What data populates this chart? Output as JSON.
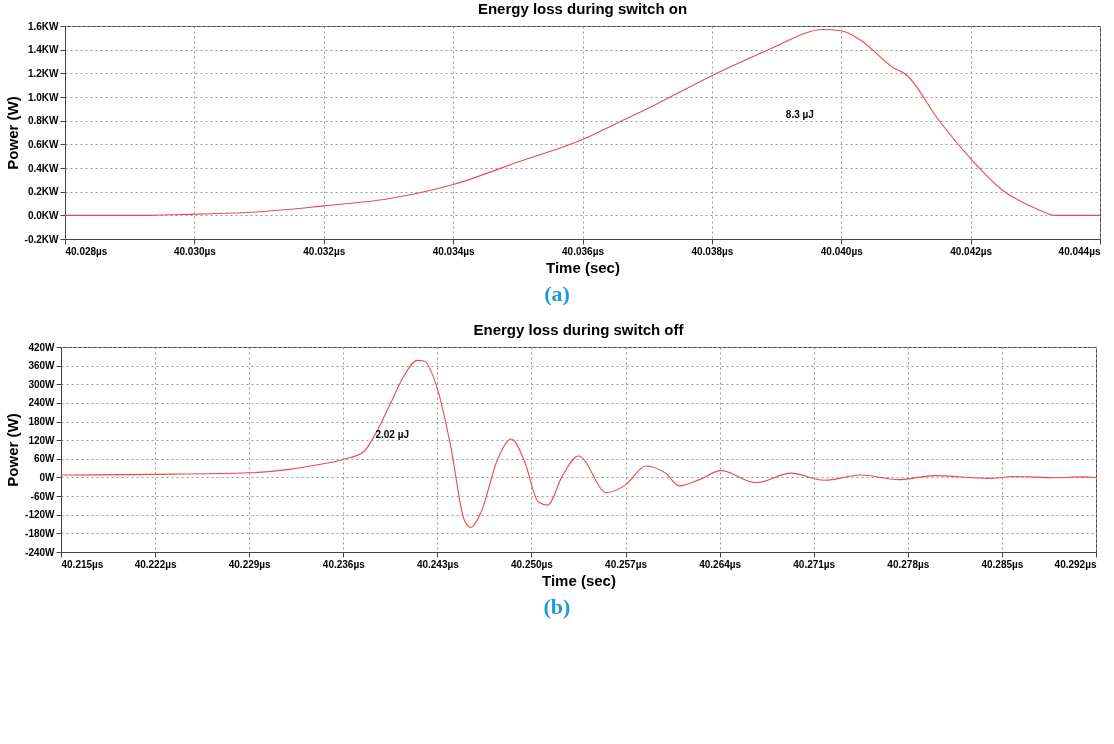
{
  "chart_data": [
    {
      "type": "line",
      "title": "Energy loss during switch on",
      "xlabel": "Time (sec)",
      "ylabel": "Power (W)",
      "series": [
        {
          "color": "#f04848",
          "x": [
            40.028,
            40.0293,
            40.03,
            40.031,
            40.032,
            40.033,
            40.034,
            40.035,
            40.036,
            40.0365,
            40.037,
            40.038,
            40.039,
            40.0395,
            40.0397,
            40.04,
            40.0403,
            40.0408,
            40.041,
            40.0415,
            40.042,
            40.0425,
            40.043,
            40.0433,
            40.044
          ],
          "values": [
            0,
            0,
            0.01,
            0.03,
            0.08,
            0.14,
            0.26,
            0.45,
            0.64,
            0.77,
            0.9,
            1.18,
            1.43,
            1.55,
            1.57,
            1.56,
            1.48,
            1.25,
            1.19,
            0.81,
            0.48,
            0.21,
            0.06,
            0,
            0
          ]
        }
      ],
      "xlim": [
        40.028,
        40.044
      ],
      "xticks": [
        {
          "value": 40.028,
          "label": "40.028µs"
        },
        {
          "value": 40.03,
          "label": "40.030µs"
        },
        {
          "value": 40.032,
          "label": "40.032µs"
        },
        {
          "value": 40.034,
          "label": "40.034µs"
        },
        {
          "value": 40.036,
          "label": "40.036µs"
        },
        {
          "value": 40.038,
          "label": "40.038µs"
        },
        {
          "value": 40.04,
          "label": "40.040µs"
        },
        {
          "value": 40.042,
          "label": "40.042µs"
        },
        {
          "value": 40.044,
          "label": "40.044µs"
        }
      ],
      "ylim": [
        -0.2,
        1.6
      ],
      "yticks": [
        {
          "value": -0.2,
          "label": "-0.2KW"
        },
        {
          "value": 0,
          "label": "0.0KW"
        },
        {
          "value": 0.2,
          "label": "0.2KW"
        },
        {
          "value": 0.4,
          "label": "0.4KW"
        },
        {
          "value": 0.6,
          "label": "0.6KW"
        },
        {
          "value": 0.8,
          "label": "0.8KW"
        },
        {
          "value": 1.0,
          "label": "1.0KW"
        },
        {
          "value": 1.2,
          "label": "1.2KW"
        },
        {
          "value": 1.4,
          "label": "1.4KW"
        },
        {
          "value": 1.6,
          "label": "1.6KW"
        }
      ],
      "grid": true,
      "annotations": [
        "8.3 µJ",
        "(a)"
      ]
    },
    {
      "type": "line",
      "title": "Energy loss during switch off",
      "xlabel": "Time (sec)",
      "ylabel": "Power (W)",
      "series": [
        {
          "color": "#f04848",
          "x": [
            40.215,
            40.222,
            40.229,
            40.232,
            40.234,
            40.236,
            40.2375,
            40.2385,
            40.2395,
            40.2405,
            40.2415,
            40.242,
            40.243,
            40.244,
            40.245,
            40.2455,
            40.2462,
            40.2475,
            40.2485,
            40.2495,
            40.2505,
            40.2512,
            40.2523,
            40.2535,
            40.2556,
            40.257,
            40.2585,
            40.26,
            40.261,
            40.2625,
            40.2641,
            40.2667,
            40.2693,
            40.2718,
            40.2745,
            40.2773,
            40.28,
            40.284,
            40.286,
            40.289,
            40.291,
            40.292
          ],
          "values": [
            8,
            10,
            15,
            26,
            40,
            58,
            82,
            149,
            237,
            326,
            377,
            375,
            286,
            99,
            -137,
            -161,
            -117,
            60,
            124,
            50,
            -78,
            -89,
            5,
            69,
            -49,
            -24,
            37,
            13,
            -27,
            -7,
            22,
            -17,
            14,
            -9,
            8,
            -7,
            6,
            -3,
            3,
            -1,
            2,
            0
          ]
        }
      ],
      "xlim": [
        40.215,
        40.292
      ],
      "xticks": [
        {
          "value": 40.215,
          "label": "40.215µs"
        },
        {
          "value": 40.222,
          "label": "40.222µs"
        },
        {
          "value": 40.229,
          "label": "40.229µs"
        },
        {
          "value": 40.236,
          "label": "40.236µs"
        },
        {
          "value": 40.243,
          "label": "40.243µs"
        },
        {
          "value": 40.25,
          "label": "40.250µs"
        },
        {
          "value": 40.257,
          "label": "40.257µs"
        },
        {
          "value": 40.264,
          "label": "40.264µs"
        },
        {
          "value": 40.271,
          "label": "40.271µs"
        },
        {
          "value": 40.278,
          "label": "40.278µs"
        },
        {
          "value": 40.285,
          "label": "40.285µs"
        },
        {
          "value": 40.292,
          "label": "40.292µs"
        }
      ],
      "ylim": [
        -240,
        420
      ],
      "yticks": [
        {
          "value": -240,
          "label": "-240W"
        },
        {
          "value": -180,
          "label": "-180W"
        },
        {
          "value": -120,
          "label": "-120W"
        },
        {
          "value": -60,
          "label": "-60W"
        },
        {
          "value": 0,
          "label": "0W"
        },
        {
          "value": 60,
          "label": "60W"
        },
        {
          "value": 120,
          "label": "120W"
        },
        {
          "value": 180,
          "label": "180W"
        },
        {
          "value": 240,
          "label": "240W"
        },
        {
          "value": 300,
          "label": "300W"
        },
        {
          "value": 360,
          "label": "360W"
        },
        {
          "value": 420,
          "label": "420W"
        }
      ],
      "grid": true,
      "annotations": [
        "2.02 µJ",
        "(b)"
      ]
    }
  ]
}
